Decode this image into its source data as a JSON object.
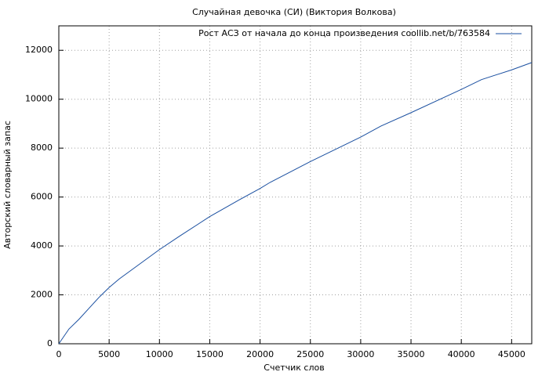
{
  "chart_data": {
    "type": "line",
    "title": "Случайная девочка (СИ) (Виктория Волкова)",
    "x_label": "Счетчик слов",
    "y_label": "Авторский словарный запас",
    "x": [
      0,
      1000,
      2000,
      3000,
      4000,
      5000,
      6000,
      7000,
      8000,
      9000,
      10000,
      12000,
      15000,
      18000,
      20000,
      21000,
      25000,
      30000,
      32000,
      35000,
      40000,
      42000,
      45000,
      47000
    ],
    "series": [
      {
        "name": "Рост АСЗ от начала до конца произведения coollib.net/b/763584",
        "color": "#1a4fa0",
        "values": [
          0,
          600,
          1000,
          1450,
          1900,
          2300,
          2650,
          2950,
          3250,
          3550,
          3850,
          4400,
          5200,
          5900,
          6350,
          6600,
          7450,
          8450,
          8900,
          9450,
          10400,
          10800,
          11200,
          11500
        ]
      }
    ],
    "xlim": [
      0,
      47000
    ],
    "ylim": [
      0,
      13000
    ],
    "xticks": [
      0,
      5000,
      10000,
      15000,
      20000,
      25000,
      30000,
      35000,
      40000,
      45000
    ],
    "yticks": [
      0,
      2000,
      4000,
      6000,
      8000,
      10000,
      12000
    ],
    "grid": true,
    "legend": "top-right"
  }
}
